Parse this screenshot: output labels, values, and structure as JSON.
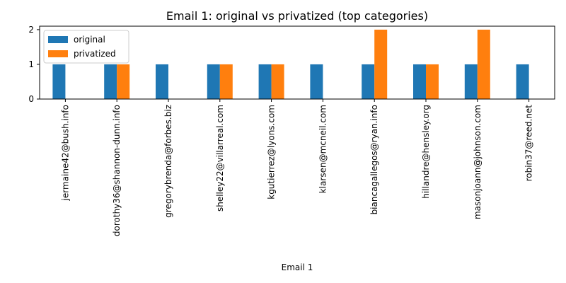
{
  "chart_data": {
    "type": "bar",
    "title": "Email 1: original vs privatized (top categories)",
    "xlabel": "Email 1",
    "ylabel": "",
    "categories": [
      "jermaine42@bush.info",
      "dorothy36@shannon-dunn.info",
      "gregorybrenda@forbes.biz",
      "shelley22@villarreal.com",
      "kgutierrez@lyons.com",
      "klarsen@mcneil.com",
      "biancagallegos@ryan.info",
      "hillandre@hensley.org",
      "masonjoann@johnson.com",
      "robin37@reed.net"
    ],
    "series": [
      {
        "name": "original",
        "color": "#1f77b4",
        "values": [
          1,
          1,
          1,
          1,
          1,
          1,
          1,
          1,
          1,
          1
        ]
      },
      {
        "name": "privatized",
        "color": "#ff7f0e",
        "values": [
          0,
          1,
          0,
          1,
          1,
          0,
          2,
          1,
          2,
          0
        ]
      }
    ],
    "ylim": [
      0,
      2.1
    ],
    "yticks": [
      0,
      1,
      2
    ],
    "grid": false,
    "legend_position": "top-left"
  }
}
